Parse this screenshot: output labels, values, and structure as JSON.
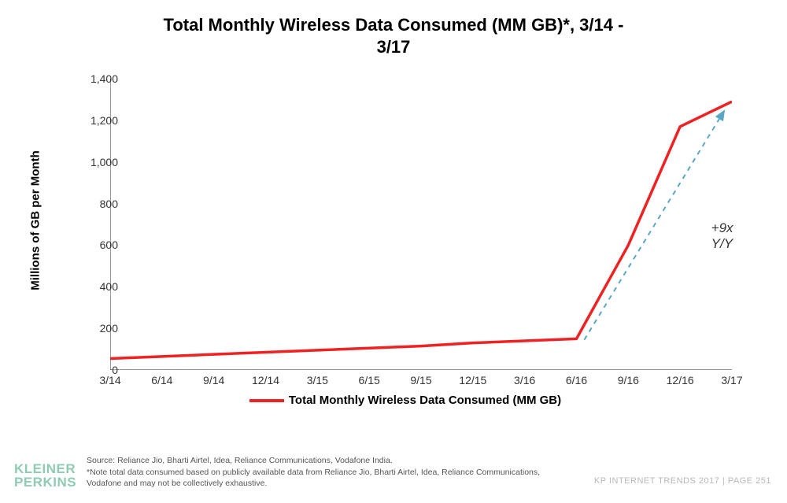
{
  "title_line1": "Total Monthly Wireless Data Consumed (MM GB)*, 3/14 -",
  "title_line2": "3/17",
  "chart": {
    "type": "line",
    "y_axis_title": "Millions of GB per Month",
    "x_categories": [
      "3/14",
      "6/14",
      "9/14",
      "12/14",
      "3/15",
      "6/15",
      "9/15",
      "12/15",
      "3/16",
      "6/16",
      "9/16",
      "12/16",
      "3/17"
    ],
    "y_ticks": [
      0,
      200,
      400,
      600,
      800,
      1000,
      1200,
      1400
    ],
    "y_tick_labels": [
      "0",
      "200",
      "400",
      "600",
      "800",
      "1,000",
      "1,200",
      "1,400"
    ],
    "ylim": [
      0,
      1400
    ],
    "series": {
      "name": "Total Monthly Wireless Data Consumed (MM GB)",
      "color": "#ee2222",
      "line_width": 3.5,
      "values": [
        55,
        65,
        75,
        85,
        95,
        105,
        115,
        130,
        140,
        150,
        600,
        1170,
        1290
      ]
    },
    "annotation_arrow": {
      "from_index": 9.15,
      "from_value": 145,
      "to_index": 11.85,
      "to_value": 1245,
      "color": "#5aa6c4",
      "dash": "6,6",
      "width": 2
    },
    "annotation_text": {
      "text": "+9x Y/Y",
      "x_index": 11.6,
      "y_value": 720,
      "fontsize": 17,
      "italic": true,
      "color": "#333333"
    },
    "axis_color": "#333333",
    "tick_font_size": 14,
    "background_color": "#ffffff"
  },
  "legend_label": "Total Monthly Wireless Data Consumed (MM GB)",
  "footer": {
    "logo_top": "KLEINER",
    "logo_bottom": "PERKINS",
    "logo_color": "#8fcbb2",
    "source_line1": "Source: Reliance Jio, Bharti Airtel, Idea, Reliance Communications, Vodafone India.",
    "source_line2": "*Note total data consumed based on publicly available data from Reliance Jio, Bharti Airtel, Idea, Reliance Communications, Vodafone and may not be collectively exhaustive.",
    "right_text": "KP INTERNET TRENDS 2017  |  PAGE 251"
  }
}
